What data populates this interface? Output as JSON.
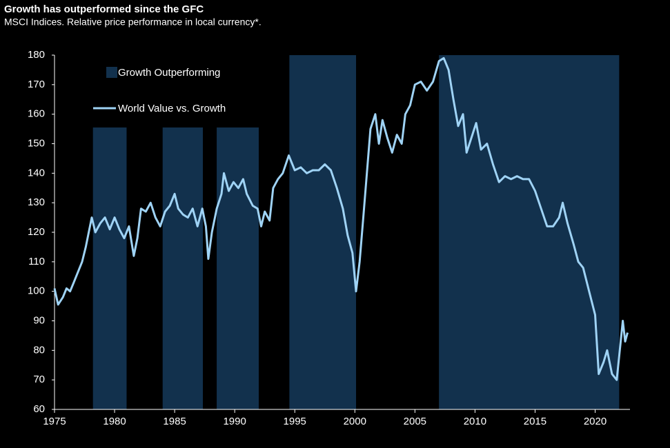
{
  "chart_data": {
    "type": "line",
    "title": "Growth has outperformed since the GFC",
    "subtitle": "MSCI Indices. Relative price performance in local currency*.",
    "shaded_periods": {
      "name": "Growth Outperforming",
      "color": "#12314d",
      "ranges": [
        [
          1978.2,
          1981.0,
          155.5
        ],
        [
          1984.0,
          1987.35,
          155.5
        ],
        [
          1988.5,
          1992.0,
          155.5
        ],
        [
          1994.55,
          2000.1,
          180
        ],
        [
          2007.0,
          2022.0,
          180
        ]
      ]
    },
    "x": [
      1975.0,
      1975.3,
      1975.7,
      1976.0,
      1976.3,
      1976.6,
      1977.0,
      1977.3,
      1977.6,
      1977.9,
      1978.1,
      1978.4,
      1978.8,
      1979.2,
      1979.6,
      1980.0,
      1980.4,
      1980.8,
      1981.2,
      1981.6,
      1981.9,
      1982.2,
      1982.6,
      1983.0,
      1983.4,
      1983.8,
      1984.2,
      1984.6,
      1985.0,
      1985.3,
      1985.7,
      1986.1,
      1986.5,
      1986.9,
      1987.3,
      1987.6,
      1987.8,
      1988.1,
      1988.5,
      1988.9,
      1989.1,
      1989.5,
      1989.9,
      1990.3,
      1990.7,
      1991.0,
      1991.5,
      1991.9,
      1992.2,
      1992.5,
      1992.9,
      1993.2,
      1993.6,
      1994.0,
      1994.5,
      1995.0,
      1995.5,
      1996.0,
      1996.5,
      1997.0,
      1997.5,
      1998.0,
      1998.5,
      1999.0,
      1999.4,
      1999.8,
      2000.1,
      2000.4,
      2000.7,
      2001.0,
      2001.3,
      2001.7,
      2002.0,
      2002.3,
      2002.7,
      2003.1,
      2003.5,
      2003.9,
      2004.2,
      2004.6,
      2005.0,
      2005.5,
      2006.0,
      2006.5,
      2007.0,
      2007.4,
      2007.8,
      2008.2,
      2008.6,
      2009.0,
      2009.3,
      2009.7,
      2010.1,
      2010.5,
      2011.0,
      2011.5,
      2012.0,
      2012.5,
      2013.0,
      2013.5,
      2014.0,
      2014.5,
      2015.0,
      2015.5,
      2016.0,
      2016.5,
      2017.0,
      2017.3,
      2017.7,
      2018.2,
      2018.6,
      2019.0,
      2019.5,
      2020.0,
      2020.3,
      2020.7,
      2021.0,
      2021.4,
      2021.8,
      2022.1,
      2022.3,
      2022.5,
      2022.7
    ],
    "series": [
      {
        "name": "World Value vs. Growth",
        "color": "#9fd3f5",
        "values": [
          101,
          95.5,
          98,
          101,
          100,
          103,
          107,
          110,
          115,
          121,
          125,
          120,
          123,
          125,
          121,
          125,
          121,
          118,
          122,
          112,
          118,
          128,
          127,
          130,
          125,
          122,
          127,
          129,
          133,
          128,
          126,
          125,
          128,
          122,
          128,
          122,
          111,
          120,
          128,
          133,
          140,
          134,
          137,
          135,
          138,
          133,
          129,
          128,
          122,
          127,
          124,
          135,
          138,
          140,
          146,
          141,
          142,
          140,
          141,
          141,
          143,
          141,
          135,
          128,
          119,
          113,
          100,
          110,
          125,
          140,
          155,
          160,
          150,
          158,
          152,
          147,
          153,
          150,
          160,
          163,
          170,
          171,
          168,
          171,
          178,
          179,
          175,
          165,
          156,
          160,
          147,
          152,
          157,
          148,
          150,
          143,
          137,
          139,
          138,
          139,
          138,
          138,
          134,
          128,
          122,
          122,
          125,
          130,
          123,
          116,
          110,
          108,
          100,
          92,
          72,
          76,
          80,
          72,
          70,
          82,
          90,
          83,
          86
        ]
      }
    ],
    "xlim": [
      1975,
      2022.9
    ],
    "ylim": [
      60,
      180
    ],
    "xticks": [
      1975,
      1980,
      1985,
      1990,
      1995,
      2000,
      2005,
      2010,
      2015,
      2020
    ],
    "yticks": [
      60,
      70,
      80,
      90,
      100,
      110,
      120,
      130,
      140,
      150,
      160,
      170,
      180
    ]
  }
}
